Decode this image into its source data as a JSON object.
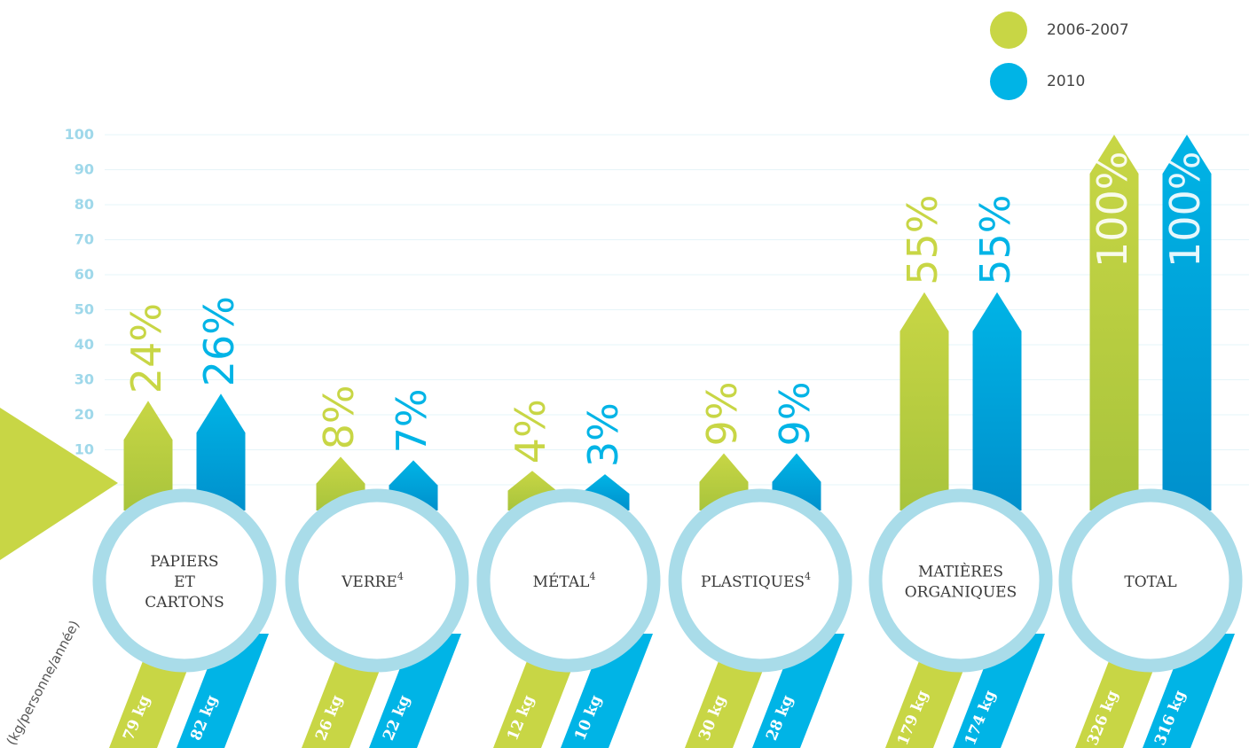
{
  "legend": [
    {
      "label": "2006-2007",
      "color": "#c8d645"
    },
    {
      "label": "2010",
      "color": "#00b4e6"
    }
  ],
  "colors": {
    "green": "#c8d645",
    "green_dark": "#a7c43a",
    "blue": "#00b4e6",
    "blue_dark": "#0090cc",
    "ring": "#a9dce9",
    "axis_text": "#9fd8ea",
    "grid": "#e6f4f8",
    "label_text": "#3a3a3a"
  },
  "chart_data": {
    "type": "bar",
    "ylabel": "(kg/personne/année)",
    "ylim": [
      0,
      100
    ],
    "yticks": [
      0,
      10,
      20,
      30,
      40,
      50,
      60,
      70,
      80,
      90,
      100
    ],
    "categories": [
      {
        "label": "PAPIERS\nET\nCARTONS",
        "sup": ""
      },
      {
        "label": "VERRE",
        "sup": "4"
      },
      {
        "label": "MÉTAL",
        "sup": "4"
      },
      {
        "label": "PLASTIQUES",
        "sup": "4"
      },
      {
        "label": "MATIÈRES\nORGANIQUES",
        "sup": ""
      },
      {
        "label": "TOTAL",
        "sup": ""
      }
    ],
    "series": [
      {
        "name": "2006-2007",
        "values": [
          24,
          8,
          4,
          9,
          55,
          100
        ],
        "pct_labels": [
          "24%",
          "8%",
          "4%",
          "9%",
          "55%",
          "100%"
        ],
        "kg_labels": [
          "79 kg",
          "26 kg",
          "12 kg",
          "30 kg",
          "179 kg",
          "326 kg"
        ]
      },
      {
        "name": "2010",
        "values": [
          26,
          7,
          3,
          9,
          55,
          100
        ],
        "pct_labels": [
          "26%",
          "7%",
          "3%",
          "9%",
          "55%",
          "100%"
        ],
        "kg_labels": [
          "82 kg",
          "22 kg",
          "10 kg",
          "28 kg",
          "174 kg",
          "316 kg"
        ]
      }
    ]
  }
}
